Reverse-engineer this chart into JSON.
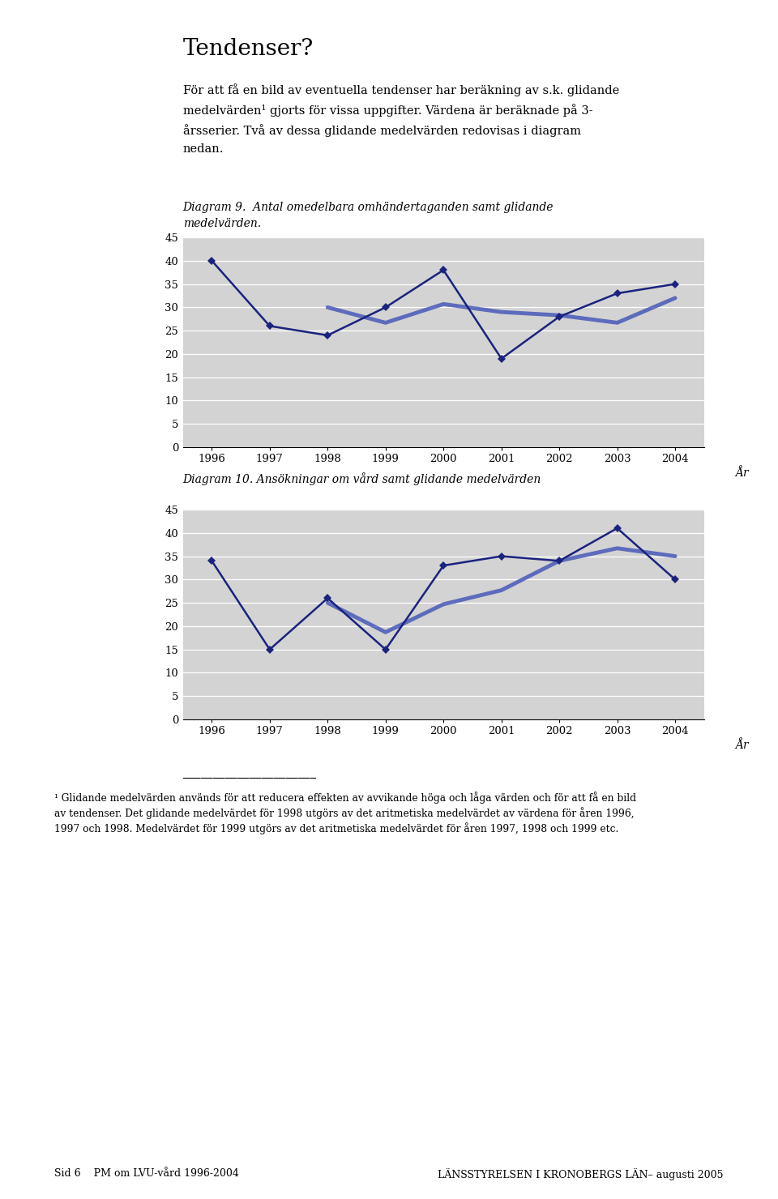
{
  "page_bg": "#ffffff",
  "chart_bg": "#d3d3d3",
  "title_text": "Tendenser?",
  "intro_lines": [
    "För att få en bild av eventuella tendenser har beräkning av s.k. glidande",
    "medelvärden¹ gjorts för vissa uppgifter. Värdena är beräknade på 3-",
    "årsserier. Två av dessa glidande medelvärden redovisas i diagram",
    "nedan."
  ],
  "diag1_title_line1": "Diagram 9.  Antal omedelbara omhändertaganden samt glidande",
  "diag1_title_line2": "medelvärden.",
  "diag2_title": "Diagram 10. Ansökningar om vård samt glidande medelvärden",
  "years": [
    1996,
    1997,
    1998,
    1999,
    2000,
    2001,
    2002,
    2003,
    2004
  ],
  "diag1_main": [
    40,
    26,
    24,
    30,
    38,
    19,
    28,
    33,
    35
  ],
  "diag1_avg_x": [
    1998,
    1999,
    2000,
    2001,
    2002,
    2003,
    2004
  ],
  "diag1_avg_y": [
    30.0,
    26.7,
    30.7,
    29.0,
    28.3,
    26.7,
    32.0
  ],
  "diag2_main": [
    34,
    15,
    26,
    15,
    33,
    35,
    34,
    41,
    30
  ],
  "diag2_avg_x": [
    1998,
    1999,
    2000,
    2001,
    2002,
    2003,
    2004
  ],
  "diag2_avg_y": [
    25.0,
    18.7,
    24.7,
    27.7,
    34.0,
    36.7,
    35.0
  ],
  "line_color": "#1a237e",
  "avg_color": "#3f51b5",
  "ylim": [
    0,
    45
  ],
  "yticks": [
    0,
    5,
    10,
    15,
    20,
    25,
    30,
    35,
    40,
    45
  ],
  "xlabel": "År",
  "footnote_rule": true,
  "footnote_lines": [
    "¹ Glidande medelvärden används för att reducera effekten av avvikande höga och låga värden och för att få en bild",
    "av tendenser. Det glidande medelvärdet för 1998 utgörs av det aritmetiska medelvärdet av värdena för åren 1996,",
    "1997 och 1998. Medelvärdet för 1999 utgörs av det aritmetiska medelvärdet för åren 1997, 1998 och 1999 etc."
  ],
  "footer_left": "Sid 6    PM om LVU-vård 1996-2004",
  "footer_right": "LÄNSSTYRELSEN I KRONOBERGS LÄN– augusti 2005"
}
